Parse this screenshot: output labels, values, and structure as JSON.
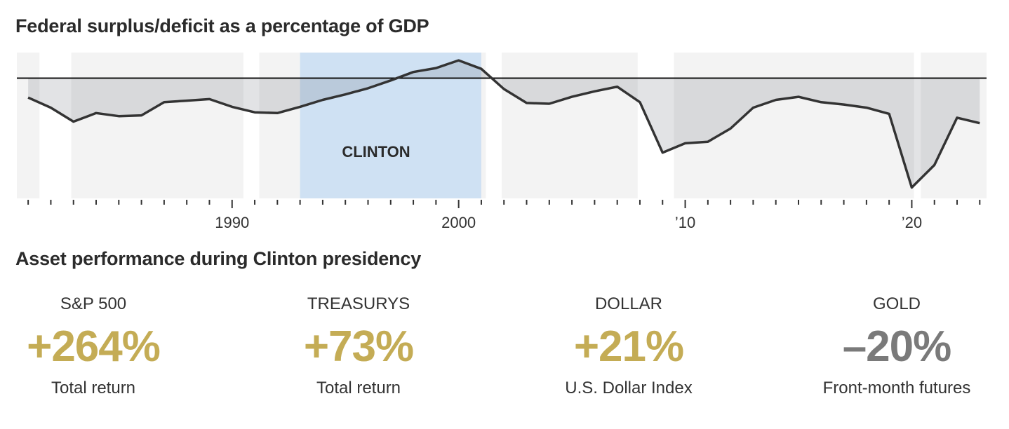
{
  "colors": {
    "positive": "#c4ac55",
    "negative": "#7a7a7a",
    "line": "#333333",
    "area": "#d9dadc",
    "panel": "#f3f3f3",
    "highlight": "#cfe1f3"
  },
  "chart_data": {
    "type": "area",
    "title": "Federal surplus/deficit as a percentage of GDP",
    "xlabel": "",
    "ylabel": "",
    "xlim": [
      1980.5,
      2023.3
    ],
    "ylim": [
      -15.5,
      3.3
    ],
    "zero_line": 0,
    "tick_labels": [
      {
        "year": 1990,
        "label": "1990"
      },
      {
        "year": 2000,
        "label": "2000"
      },
      {
        "year": 2010,
        "label": "’10"
      },
      {
        "year": 2020,
        "label": "’20"
      }
    ],
    "highlight": {
      "from": 1993,
      "to": 2001,
      "label": "CLINTON"
    },
    "recessions": [
      [
        1981.5,
        1982.9
      ],
      [
        1990.5,
        1991.2
      ],
      [
        2001.2,
        2001.9
      ],
      [
        2007.9,
        2009.5
      ],
      [
        2020.1,
        2020.4
      ]
    ],
    "series": [
      {
        "name": "Surplus/deficit (% of GDP)",
        "x": [
          1981,
          1982,
          1983,
          1984,
          1985,
          1986,
          1987,
          1988,
          1989,
          1990,
          1991,
          1992,
          1993,
          1994,
          1995,
          1996,
          1997,
          1998,
          1999,
          2000,
          2001,
          2002,
          2003,
          2004,
          2005,
          2006,
          2007,
          2008,
          2009,
          2010,
          2011,
          2012,
          2013,
          2014,
          2015,
          2016,
          2017,
          2018,
          2019,
          2020,
          2021,
          2022,
          2023
        ],
        "values": [
          -2.5,
          -3.8,
          -5.6,
          -4.5,
          -4.9,
          -4.8,
          -3.1,
          -2.9,
          -2.7,
          -3.7,
          -4.4,
          -4.5,
          -3.7,
          -2.8,
          -2.1,
          -1.3,
          -0.3,
          0.8,
          1.3,
          2.3,
          1.2,
          -1.4,
          -3.2,
          -3.3,
          -2.4,
          -1.7,
          -1.1,
          -3.1,
          -9.6,
          -8.4,
          -8.2,
          -6.5,
          -3.8,
          -2.8,
          -2.4,
          -3.1,
          -3.4,
          -3.8,
          -4.6,
          -14.1,
          -11.2,
          -5.1,
          -5.8
        ]
      }
    ]
  },
  "chart": {
    "title": "Federal surplus/deficit as a percentage of GDP",
    "highlight_label": "CLINTON"
  },
  "assets": {
    "title": "Asset performance during Clinton presidency",
    "items": [
      {
        "label": "S&P 500",
        "value": "+264%",
        "note": "Total return",
        "direction": "positive"
      },
      {
        "label": "TREASURYS",
        "value": "+73%",
        "note": "Total return",
        "direction": "positive"
      },
      {
        "label": "DOLLAR",
        "value": "+21%",
        "note": "U.S. Dollar Index",
        "direction": "positive"
      },
      {
        "label": "GOLD",
        "value": "–20%",
        "note": "Front-month futures",
        "direction": "negative"
      }
    ]
  }
}
